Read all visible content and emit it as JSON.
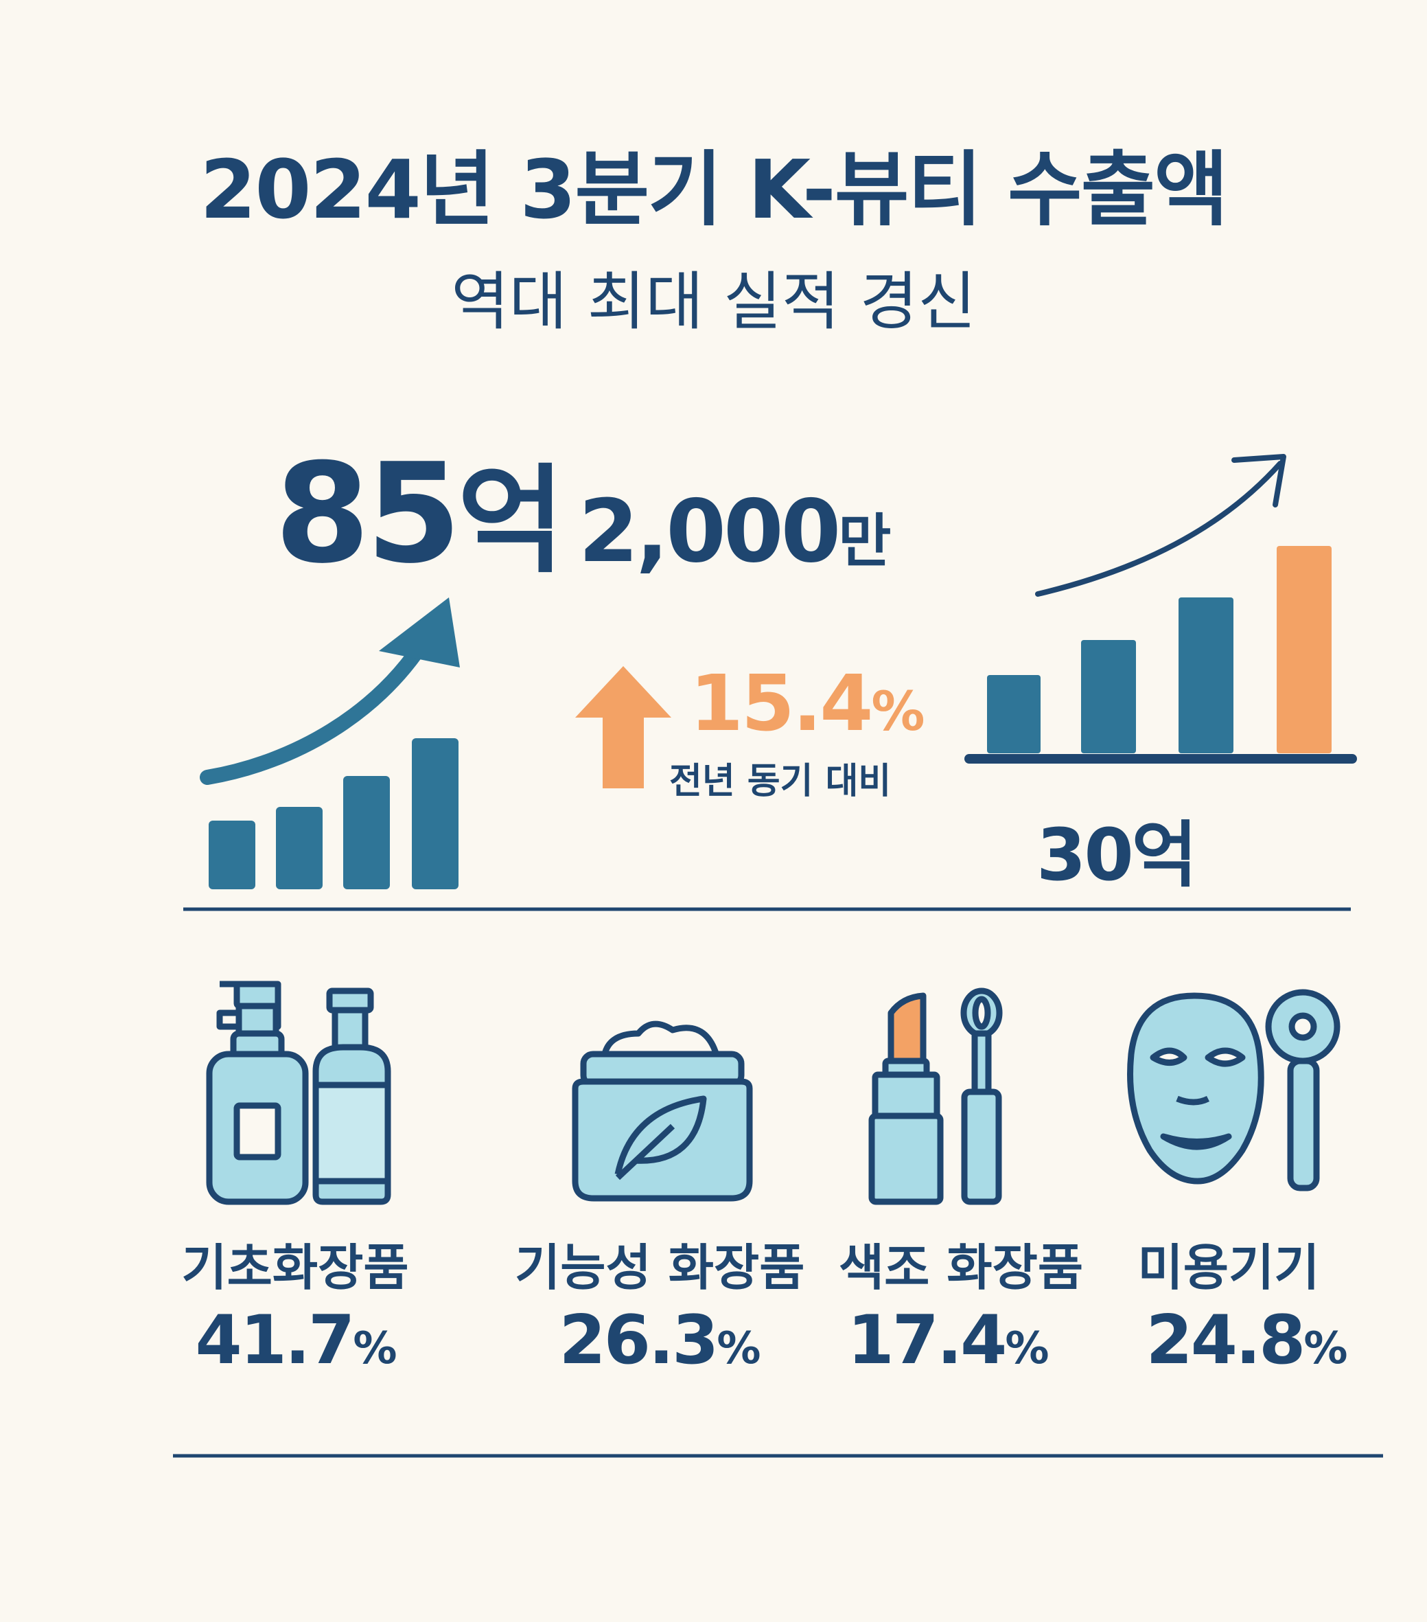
{
  "header": {
    "title": "2024년 3분기 K-뷰티 수출액",
    "subtitle": "역대 최대 실적 경신"
  },
  "headline": {
    "amount_main": "85",
    "amount_main_unit": "억",
    "amount_sub": "2,000",
    "amount_sub_unit": "만"
  },
  "growth": {
    "value": "15.4",
    "unit": "%",
    "caption": "전년 동기 대비"
  },
  "chart_label": "30억",
  "categories": [
    {
      "name": "기초화장품",
      "value": "41.7",
      "unit": "%",
      "icon": "skincare-bottles-icon"
    },
    {
      "name": "기능성 화장품",
      "value": "26.3",
      "unit": "%",
      "icon": "cream-jar-icon"
    },
    {
      "name": "색조 화장품",
      "value": "17.4",
      "unit": "%",
      "icon": "lipstick-icon"
    },
    {
      "name": "미용기기",
      "value": "24.8",
      "unit": "%",
      "icon": "face-mask-device-icon"
    }
  ],
  "colors": {
    "navy": "#1f4670",
    "teal": "#2f7597",
    "orange": "#f3a265",
    "light_blue": "#a9dbe6",
    "background": "#fbf8f1"
  }
}
